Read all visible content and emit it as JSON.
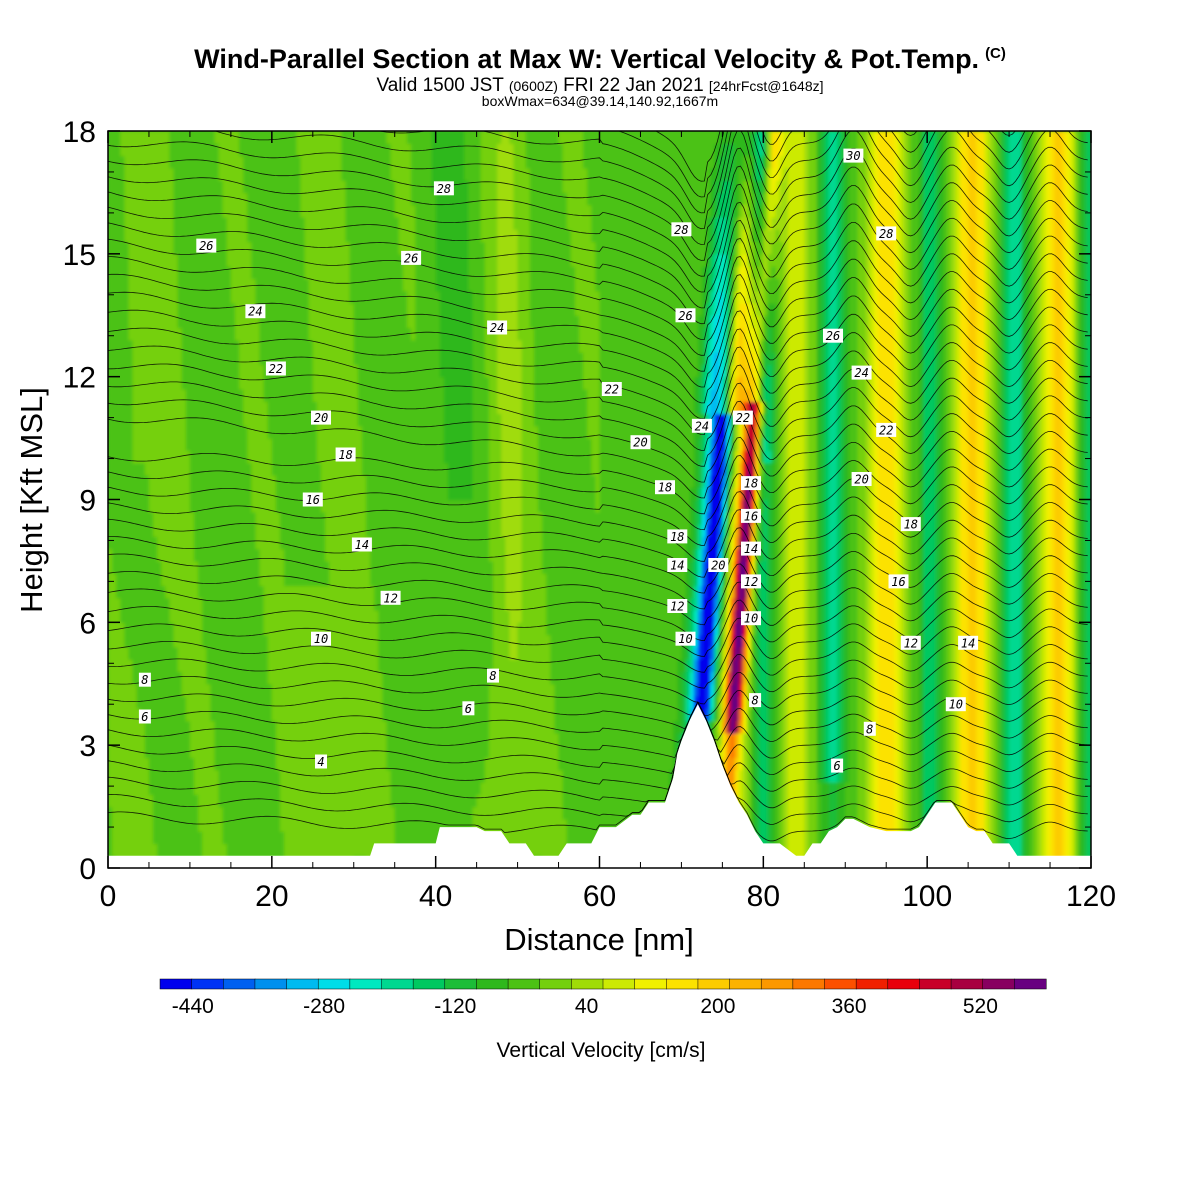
{
  "title": {
    "main": "Wind-Parallel Section at Max W: Vertical Velocity & Pot.Temp.",
    "copyright": "(C)",
    "valid_prefix": "Valid 1500 JST",
    "valid_utc": "(0600Z)",
    "valid_date": "FRI 22 Jan 2021",
    "forecast": "[24hrFcst@1648z]",
    "box": "boxWmax=634@39.14,140.92,1667m"
  },
  "chart_data": {
    "type": "heatmap",
    "xlabel": "Distance [nm]",
    "ylabel": "Height [Kft MSL]",
    "xlim": [
      0,
      120
    ],
    "ylim": [
      0,
      18
    ],
    "x_ticks": [
      "0",
      "20",
      "40",
      "60",
      "80",
      "100",
      "120"
    ],
    "y_ticks": [
      "0",
      "3",
      "6",
      "9",
      "12",
      "15",
      "18"
    ],
    "colorbar": {
      "label": "Vertical Velocity [cm/s]",
      "tick_labels": [
        "-440",
        "-280",
        "-120",
        "40",
        "200",
        "360",
        "520"
      ],
      "min": -480,
      "max": 600,
      "step": 40,
      "colors": [
        "#0000ee",
        "#0033f5",
        "#0060f0",
        "#0090ee",
        "#00bbf0",
        "#00dde8",
        "#00e8c0",
        "#00d890",
        "#00c860",
        "#1cbd38",
        "#2fb81c",
        "#4cc214",
        "#74d00e",
        "#a0dc08",
        "#ccea04",
        "#f0f000",
        "#fce200",
        "#fccc00",
        "#fcb200",
        "#fc9800",
        "#fc7800",
        "#fc5000",
        "#f02000",
        "#e8000c",
        "#c80028",
        "#a80040",
        "#880060",
        "#680080"
      ]
    },
    "terrain_profile": {
      "x": [
        0,
        32,
        32.5,
        40,
        40.5,
        45,
        46,
        48,
        49,
        51,
        52,
        55,
        56,
        59,
        60,
        62,
        64,
        65,
        66,
        68,
        69,
        69.5,
        70,
        71,
        72,
        73,
        74,
        75,
        76,
        77,
        78,
        79,
        80,
        81,
        82,
        84,
        85,
        86,
        87,
        88,
        89,
        90,
        91,
        93,
        95,
        96,
        98,
        99,
        100,
        101,
        103,
        104,
        105,
        106,
        107,
        108,
        110,
        111,
        117,
        120
      ],
      "y": [
        0.3,
        0.3,
        0.6,
        0.6,
        1.0,
        1.0,
        0.9,
        0.9,
        0.6,
        0.6,
        0.3,
        0.3,
        0.6,
        0.6,
        1.0,
        1.0,
        1.3,
        1.3,
        1.6,
        1.6,
        2.2,
        2.8,
        3.1,
        3.6,
        4.0,
        3.6,
        3.1,
        2.5,
        2.0,
        1.6,
        1.3,
        0.9,
        0.6,
        0.6,
        0.6,
        0.3,
        0.3,
        0.6,
        0.6,
        0.9,
        1.0,
        1.2,
        1.2,
        1.0,
        0.9,
        0.9,
        0.9,
        1.0,
        1.3,
        1.6,
        1.6,
        1.3,
        1.0,
        0.9,
        0.9,
        0.6,
        0.6,
        0.3,
        0.3,
        0.3
      ]
    },
    "contour_labels": [
      {
        "x": 41,
        "y": 16.6,
        "text": "28"
      },
      {
        "x": 12,
        "y": 15.2,
        "text": "26"
      },
      {
        "x": 37,
        "y": 14.9,
        "text": "26"
      },
      {
        "x": 18,
        "y": 13.6,
        "text": "24"
      },
      {
        "x": 47.5,
        "y": 13.2,
        "text": "24"
      },
      {
        "x": 20.5,
        "y": 12.2,
        "text": "22"
      },
      {
        "x": 61.5,
        "y": 11.7,
        "text": "22"
      },
      {
        "x": 26,
        "y": 11.0,
        "text": "20"
      },
      {
        "x": 65,
        "y": 10.4,
        "text": "20"
      },
      {
        "x": 29,
        "y": 10.1,
        "text": "18"
      },
      {
        "x": 68,
        "y": 9.3,
        "text": "18"
      },
      {
        "x": 25,
        "y": 9.0,
        "text": "16"
      },
      {
        "x": 31,
        "y": 7.9,
        "text": "14"
      },
      {
        "x": 34.5,
        "y": 6.6,
        "text": "12"
      },
      {
        "x": 26,
        "y": 5.6,
        "text": "10"
      },
      {
        "x": 4.5,
        "y": 4.6,
        "text": "8"
      },
      {
        "x": 47,
        "y": 4.7,
        "text": "8"
      },
      {
        "x": 4.5,
        "y": 3.7,
        "text": "6"
      },
      {
        "x": 44,
        "y": 3.9,
        "text": "6"
      },
      {
        "x": 26,
        "y": 2.6,
        "text": "4"
      },
      {
        "x": 70,
        "y": 15.6,
        "text": "28"
      },
      {
        "x": 70.5,
        "y": 13.5,
        "text": "26"
      },
      {
        "x": 72.5,
        "y": 10.8,
        "text": "24"
      },
      {
        "x": 77.5,
        "y": 11.0,
        "text": "22"
      },
      {
        "x": 69.5,
        "y": 8.1,
        "text": "18"
      },
      {
        "x": 69.5,
        "y": 7.4,
        "text": "14"
      },
      {
        "x": 74.5,
        "y": 7.4,
        "text": "20"
      },
      {
        "x": 69.5,
        "y": 6.4,
        "text": "12"
      },
      {
        "x": 70.5,
        "y": 5.6,
        "text": "10"
      },
      {
        "x": 78.5,
        "y": 9.4,
        "text": "18"
      },
      {
        "x": 78.5,
        "y": 8.6,
        "text": "16"
      },
      {
        "x": 78.5,
        "y": 7.8,
        "text": "14"
      },
      {
        "x": 78.5,
        "y": 7.0,
        "text": "12"
      },
      {
        "x": 78.5,
        "y": 6.1,
        "text": "10"
      },
      {
        "x": 79,
        "y": 4.1,
        "text": "8"
      },
      {
        "x": 91,
        "y": 17.4,
        "text": "30"
      },
      {
        "x": 95,
        "y": 15.5,
        "text": "28"
      },
      {
        "x": 88.5,
        "y": 13.0,
        "text": "26"
      },
      {
        "x": 92,
        "y": 12.1,
        "text": "24"
      },
      {
        "x": 95,
        "y": 10.7,
        "text": "22"
      },
      {
        "x": 92,
        "y": 9.5,
        "text": "20"
      },
      {
        "x": 98,
        "y": 8.4,
        "text": "18"
      },
      {
        "x": 96.5,
        "y": 7.0,
        "text": "16"
      },
      {
        "x": 98,
        "y": 5.5,
        "text": "12"
      },
      {
        "x": 105,
        "y": 5.5,
        "text": "14"
      },
      {
        "x": 103.5,
        "y": 4.0,
        "text": "10"
      },
      {
        "x": 93,
        "y": 3.4,
        "text": "8"
      },
      {
        "x": 89,
        "y": 2.5,
        "text": "6"
      }
    ]
  }
}
